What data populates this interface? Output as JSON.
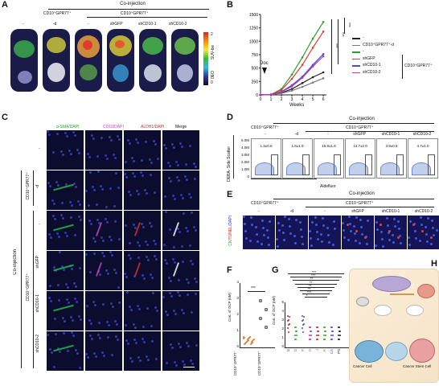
{
  "panels": [
    "A",
    "B",
    "C",
    "D",
    "E",
    "F",
    "G",
    "H"
  ],
  "panelA": {
    "coinjection": "Co-injection",
    "group_left": "CD10⁺GPR77⁺",
    "group_right": "CD10⁺GPR77⁺",
    "columns": [
      "-",
      "-d",
      "-",
      "shGFP",
      "shCD10-1",
      "shCD10-2"
    ],
    "colorbar_top": "2",
    "colorbar_bottom": "0",
    "colorbar_label": "SUV-bw",
    "vert_label": "0EO"
  },
  "panelB": {
    "ylabel": "Tumor size (mm³)",
    "xlabel": "Weeks",
    "annotation": "Doc",
    "sig": [
      "***",
      "***",
      "***"
    ],
    "legend": [
      "-",
      "CD10⁺GPR77⁺-d",
      "-",
      "shGFP",
      "shCD10-1",
      "shCD10-2"
    ],
    "legend_bracket": "CD10⁺GPR77⁺"
  },
  "chart_data": {
    "type": "line",
    "x": [
      0,
      1,
      2,
      3,
      4,
      5,
      6
    ],
    "xlabel": "Weeks",
    "ylabel": "Tumor size (mm³)",
    "ylim": [
      0,
      1500
    ],
    "yticks": [
      0,
      250,
      500,
      750,
      1000,
      1250,
      1500
    ],
    "series": [
      {
        "name": "-",
        "color": "#222222",
        "values": [
          0,
          5,
          40,
          110,
          220,
          330,
          420
        ]
      },
      {
        "name": "CD10⁺GPR77⁺-d",
        "color": "#7a7a7a",
        "values": [
          0,
          5,
          30,
          80,
          150,
          230,
          310
        ]
      },
      {
        "name": "-",
        "color": "#2ca02c",
        "values": [
          0,
          6,
          110,
          380,
          700,
          1050,
          1360
        ]
      },
      {
        "name": "shGFP",
        "color": "#e03a3a",
        "values": [
          0,
          6,
          90,
          300,
          560,
          880,
          1180
        ]
      },
      {
        "name": "shCD10-1",
        "color": "#4a4ad0",
        "values": [
          0,
          5,
          60,
          180,
          340,
          560,
          760
        ]
      },
      {
        "name": "shCD10-2",
        "color": "#b03ab0",
        "values": [
          0,
          5,
          55,
          160,
          320,
          530,
          720
        ]
      }
    ]
  },
  "panelC": {
    "headers": [
      "α-SMA/DAPI",
      "CD10/DAPI",
      "ALDH1/DAPI",
      "Merge"
    ],
    "header_colors": [
      "#22aa22",
      "#cc44cc",
      "#dd2222",
      "#111111"
    ],
    "rows": [
      "-",
      "-d",
      "-",
      "shGFP",
      "shCD10-1",
      "shCD10-2"
    ],
    "group1": "CD10⁺GPR77⁺",
    "group2": "CD10⁺GPR77⁺",
    "coinjection": "Co-injection"
  },
  "panelD": {
    "coinjection": "Co-injection",
    "group_left": "CD10⁺GPR77⁺",
    "group_right": "CD10⁺GPR77⁺",
    "columns": [
      "-",
      "-d",
      "-",
      "shGFP",
      "shCD10-1",
      "shCD10-2"
    ],
    "ylabel": "DEBA-\nSide Scatter",
    "xlabel": "Aldefluor",
    "yticks": [
      "5.0M",
      "4.0M",
      "3.0M",
      "2.0M",
      "1.0M",
      "0"
    ],
    "percents": [
      "1.3±0.6",
      "1.6±1.0",
      "15.8±1.6",
      "14.7±2.0",
      "3.9±0.8",
      "4.7±1.0"
    ]
  },
  "panelE": {
    "coinjection": "Co-injection",
    "group_left": "CD10⁺GPR77⁺",
    "group_right": "CD10⁺GPR77⁺",
    "columns": [
      "-",
      "-d",
      "-",
      "shGFP",
      "shCD10-1",
      "shCD10-2"
    ],
    "ylabel_parts": [
      "CK",
      "/TUNEL",
      "/DAPI"
    ]
  },
  "panelF": {
    "ylabel": "Con. of OCP (nM)",
    "categories": [
      "CD10⁺GPR77⁻",
      "CD10⁺GPR77⁺"
    ],
    "sig": "***",
    "yticks": [
      "0",
      "1",
      "2",
      "3",
      "4"
    ]
  },
  "panelG": {
    "ylabel": "Con. of OCP (nM)",
    "categories": [
      "B",
      "D",
      "F",
      "H",
      "J",
      "K",
      "CA",
      "PS"
    ],
    "sig_lines": [
      "***",
      "***",
      "**",
      "**",
      "**",
      "**",
      "***",
      "*"
    ],
    "yticks": [
      "0",
      "1",
      "2",
      "3",
      "4",
      "5"
    ]
  },
  "panelH": {
    "labels": [
      "Cancer Cell",
      "Cancer Stem Cell"
    ]
  }
}
